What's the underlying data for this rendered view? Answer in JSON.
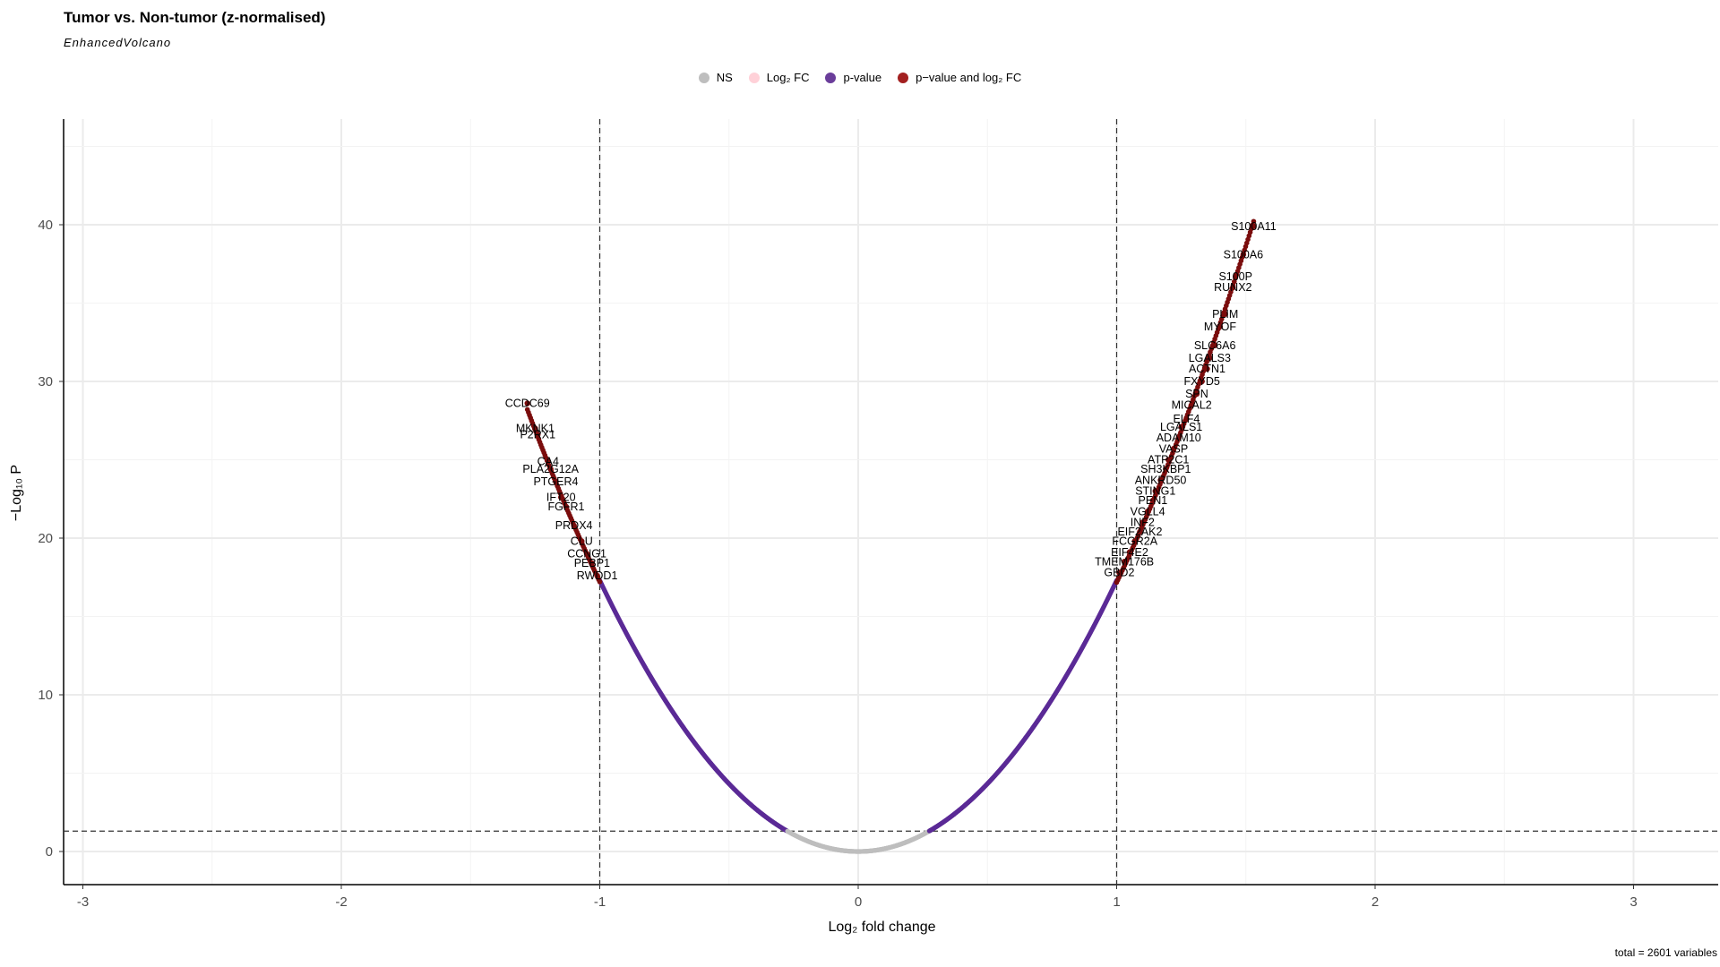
{
  "chart_data": {
    "type": "scatter",
    "title": "Tumor vs. Non-tumor (z-normalised)",
    "subtitle": "EnhancedVolcano",
    "caption": "total = 2601 variables",
    "xlabel": "Log₂ fold change",
    "ylabel": "−Log₁₀ P",
    "xlim": [
      -3.3,
      3.3
    ],
    "ylim": [
      -2,
      47
    ],
    "x_ticks": [
      "-3",
      "-2",
      "-1",
      "0",
      "1",
      "2",
      "3"
    ],
    "y_ticks": [
      "0",
      "10",
      "20",
      "30",
      "40"
    ],
    "fc_cutoff": 1.0,
    "p_cutoff_neglog10": 1.3,
    "curve_model": "y = 17.3 * x^2",
    "total_points": 2601,
    "grid": true,
    "legend_position": "top",
    "legend": [
      {
        "label": "NS",
        "color": "#bebebe"
      },
      {
        "label": "Log₂ FC",
        "color": "#ffd1d8"
      },
      {
        "label": "p-value",
        "color": "#6a3d9a"
      },
      {
        "label": "p−value and log₂ FC",
        "color": "#a32020"
      }
    ],
    "series_colors": {
      "ns": "#bebebe",
      "pvalue": "#5b2a96",
      "both": "#7a0c0c"
    },
    "labeled_points": [
      {
        "label": "S100A11",
        "x": 1.53,
        "y": 39.9
      },
      {
        "label": "S100A6",
        "x": 1.49,
        "y": 38.1
      },
      {
        "label": "S100P",
        "x": 1.46,
        "y": 36.7
      },
      {
        "label": "RUNX2",
        "x": 1.45,
        "y": 36.0
      },
      {
        "label": "PLIM",
        "x": 1.42,
        "y": 34.3
      },
      {
        "label": "MYOF",
        "x": 1.4,
        "y": 33.5
      },
      {
        "label": "SLC6A6",
        "x": 1.38,
        "y": 32.3
      },
      {
        "label": "LGALS3",
        "x": 1.36,
        "y": 31.5
      },
      {
        "label": "ACTN1",
        "x": 1.35,
        "y": 30.8
      },
      {
        "label": "FXYD5",
        "x": 1.33,
        "y": 30.0
      },
      {
        "label": "SPN",
        "x": 1.31,
        "y": 29.2
      },
      {
        "label": "MICAL2",
        "x": 1.29,
        "y": 28.5
      },
      {
        "label": "ELF4",
        "x": 1.27,
        "y": 27.6
      },
      {
        "label": "LGALS1",
        "x": 1.25,
        "y": 27.1
      },
      {
        "label": "ADAM10",
        "x": 1.24,
        "y": 26.4
      },
      {
        "label": "VASP",
        "x": 1.22,
        "y": 25.7
      },
      {
        "label": "ATP2C1",
        "x": 1.2,
        "y": 25.0
      },
      {
        "label": "SH3KBP1",
        "x": 1.19,
        "y": 24.4
      },
      {
        "label": "ANKRD50",
        "x": 1.17,
        "y": 23.7
      },
      {
        "label": "STING1",
        "x": 1.15,
        "y": 23.0
      },
      {
        "label": "PEN1",
        "x": 1.14,
        "y": 22.4
      },
      {
        "label": "VGLL4",
        "x": 1.12,
        "y": 21.7
      },
      {
        "label": "INF2",
        "x": 1.1,
        "y": 21.0
      },
      {
        "label": "EIF2AK2",
        "x": 1.09,
        "y": 20.4
      },
      {
        "label": "FCGR2A",
        "x": 1.07,
        "y": 19.8
      },
      {
        "label": "EIF4E2",
        "x": 1.05,
        "y": 19.1
      },
      {
        "label": "TMEM176B",
        "x": 1.03,
        "y": 18.5
      },
      {
        "label": "GBD2",
        "x": 1.01,
        "y": 17.8
      },
      {
        "label": "CCDC69",
        "x": -1.28,
        "y": 28.6
      },
      {
        "label": "MKNK1",
        "x": -1.25,
        "y": 27.0
      },
      {
        "label": "P2RX1",
        "x": -1.24,
        "y": 26.6
      },
      {
        "label": "CA4",
        "x": -1.2,
        "y": 24.9
      },
      {
        "label": "PLA2G12A",
        "x": -1.19,
        "y": 24.4
      },
      {
        "label": "PTGER4",
        "x": -1.17,
        "y": 23.6
      },
      {
        "label": "IFT20",
        "x": -1.15,
        "y": 22.6
      },
      {
        "label": "FGFR1",
        "x": -1.13,
        "y": 22.0
      },
      {
        "label": "PRDX4",
        "x": -1.1,
        "y": 20.8
      },
      {
        "label": "CLU",
        "x": -1.07,
        "y": 19.8
      },
      {
        "label": "CCNG1",
        "x": -1.05,
        "y": 19.0
      },
      {
        "label": "PEBP1",
        "x": -1.03,
        "y": 18.4
      },
      {
        "label": "RWDD1",
        "x": -1.01,
        "y": 17.6
      }
    ]
  }
}
